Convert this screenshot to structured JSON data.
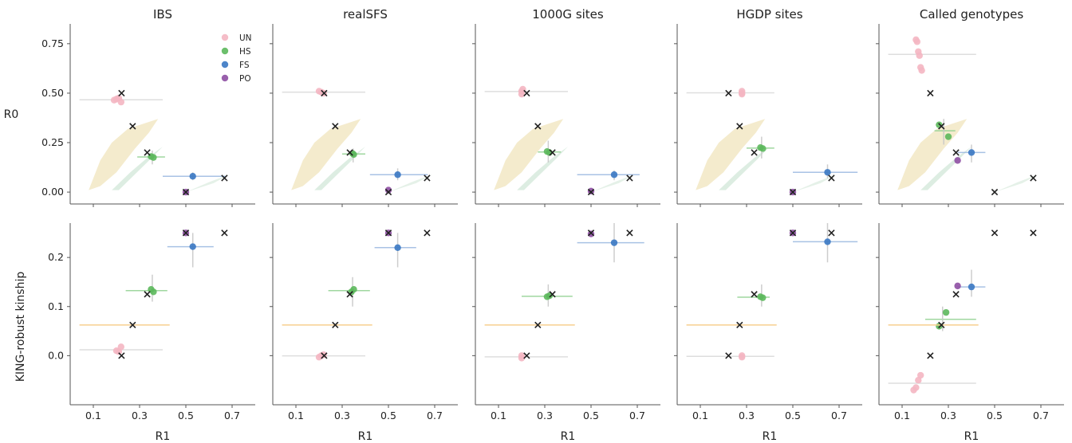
{
  "figure": {
    "panel_titles": [
      "IBS",
      "realSFS",
      "1000G sites",
      "HGDP sites",
      "Called genotypes"
    ],
    "row_labels": [
      "R0",
      "KING-robust kinship"
    ],
    "x_label": "R1"
  },
  "colors": {
    "UN": "#f4b6c2",
    "HS": "#5cb85c",
    "FS": "#3a78c3",
    "PO": "#8e4fa3",
    "expected_marker": "#222222",
    "band_yellow": "#f0e3b8",
    "band_green": "#cfe6d6",
    "err_grey": "#d9d9d9",
    "err_orange": "#f7cf8f",
    "err_green": "#8fd18f",
    "err_blue": "#9ab8e0"
  },
  "chart_data": {
    "type": "scatter",
    "x_axis": {
      "label": "R1",
      "ticks": [
        0.1,
        0.3,
        0.5,
        0.7
      ],
      "range": [
        0.0,
        0.8
      ]
    },
    "rows": [
      {
        "y_label": "R0",
        "ticks": [
          0.0,
          0.25,
          0.5,
          0.75
        ],
        "tick_labels": [
          "0.00",
          "0.25",
          "0.50",
          "0.75"
        ],
        "range": [
          -0.06,
          0.85
        ]
      },
      {
        "y_label": "KING-robust kinship",
        "ticks": [
          0.0,
          0.1,
          0.2
        ],
        "tick_labels": [
          "0.0",
          "0.1",
          "0.2"
        ],
        "range": [
          -0.1,
          0.27
        ]
      }
    ],
    "legend": {
      "entries": [
        "UN",
        "HS",
        "FS",
        "PO"
      ],
      "placement": "top-right of first panel"
    },
    "expected": {
      "R0": [
        {
          "x": 0.222,
          "y": 0.5
        },
        {
          "x": 0.27,
          "y": 0.333
        },
        {
          "x": 0.333,
          "y": 0.2
        },
        {
          "x": 0.667,
          "y": 0.071
        },
        {
          "x": 0.5,
          "y": 0.0
        }
      ],
      "KING": [
        {
          "x": 0.222,
          "y": 0.0
        },
        {
          "x": 0.27,
          "y": 0.0625
        },
        {
          "x": 0.333,
          "y": 0.125
        },
        {
          "x": 0.667,
          "y": 0.25
        },
        {
          "x": 0.5,
          "y": 0.25
        }
      ]
    },
    "panels": [
      {
        "name": "IBS",
        "R0": [
          {
            "group": "UN",
            "points": [
              [
                0.2,
                0.47
              ],
              [
                0.21,
                0.475
              ],
              [
                0.22,
                0.455
              ],
              [
                0.19,
                0.465
              ]
            ],
            "xerr": [
              0.04,
              0.4
            ],
            "yerr": null
          },
          {
            "group": "HS",
            "points": [
              [
                0.35,
                0.18
              ],
              [
                0.36,
                0.175
              ]
            ],
            "xerr": [
              0.29,
              0.41
            ],
            "yerr": [
              0.14,
              0.21
            ]
          },
          {
            "group": "FS",
            "points": [
              [
                0.53,
                0.08
              ]
            ],
            "xerr": [
              0.4,
              0.67
            ],
            "yerr": [
              0.06,
              0.1
            ]
          },
          {
            "group": "PO",
            "points": [
              [
                0.5,
                0.0
              ]
            ],
            "xerr": null,
            "yerr": null
          }
        ],
        "KING": [
          {
            "group": "UN",
            "points": [
              [
                0.2,
                0.01
              ],
              [
                0.21,
                0.008
              ],
              [
                0.22,
                0.018
              ]
            ],
            "xerr": [
              0.04,
              0.4
            ],
            "yerr": null
          },
          {
            "group": "HS",
            "points": [
              [
                0.35,
                0.135
              ],
              [
                0.36,
                0.13
              ]
            ],
            "xerr": [
              0.24,
              0.42
            ],
            "yerr": [
              0.11,
              0.165
            ]
          },
          {
            "group": "FS",
            "points": [
              [
                0.53,
                0.222
              ]
            ],
            "xerr": [
              0.42,
              0.62
            ],
            "yerr": [
              0.18,
              0.25
            ]
          },
          {
            "group": "PO",
            "points": [
              [
                0.5,
                0.25
              ]
            ],
            "xerr": null,
            "yerr": null
          }
        ]
      },
      {
        "name": "realSFS",
        "R0": [
          {
            "group": "UN",
            "points": [
              [
                0.21,
                0.505
              ],
              [
                0.22,
                0.5
              ],
              [
                0.2,
                0.51
              ]
            ],
            "xerr": [
              0.04,
              0.4
            ],
            "yerr": null
          },
          {
            "group": "HS",
            "points": [
              [
                0.35,
                0.19
              ],
              [
                0.345,
                0.195
              ]
            ],
            "xerr": [
              0.3,
              0.4
            ],
            "yerr": [
              0.15,
              0.22
            ]
          },
          {
            "group": "FS",
            "points": [
              [
                0.54,
                0.088
              ]
            ],
            "xerr": [
              0.42,
              0.67
            ],
            "yerr": [
              0.06,
              0.12
            ]
          },
          {
            "group": "PO",
            "points": [
              [
                0.5,
                0.01
              ]
            ],
            "xerr": null,
            "yerr": null
          }
        ],
        "KING": [
          {
            "group": "UN",
            "points": [
              [
                0.21,
                0.0
              ],
              [
                0.2,
                -0.003
              ],
              [
                0.22,
                0.002
              ]
            ],
            "xerr": [
              0.04,
              0.4
            ],
            "yerr": null
          },
          {
            "group": "HS",
            "points": [
              [
                0.34,
                0.13
              ],
              [
                0.35,
                0.135
              ]
            ],
            "xerr": [
              0.24,
              0.42
            ],
            "yerr": [
              0.1,
              0.16
            ]
          },
          {
            "group": "FS",
            "points": [
              [
                0.54,
                0.22
              ]
            ],
            "xerr": [
              0.44,
              0.62
            ],
            "yerr": [
              0.18,
              0.25
            ]
          },
          {
            "group": "PO",
            "points": [
              [
                0.5,
                0.25
              ]
            ],
            "xerr": null,
            "yerr": null
          }
        ]
      },
      {
        "name": "1000G sites",
        "R0": [
          {
            "group": "UN",
            "points": [
              [
                0.2,
                0.51
              ],
              [
                0.2,
                0.495
              ],
              [
                0.205,
                0.52
              ]
            ],
            "xerr": [
              0.04,
              0.4
            ],
            "yerr": null
          },
          {
            "group": "HS",
            "points": [
              [
                0.32,
                0.2
              ],
              [
                0.31,
                0.205
              ]
            ],
            "xerr": [
              0.27,
              0.37
            ],
            "yerr": [
              0.15,
              0.26
            ]
          },
          {
            "group": "FS",
            "points": [
              [
                0.6,
                0.088
              ]
            ],
            "xerr": [
              0.44,
              0.71
            ],
            "yerr": [
              0.06,
              0.11
            ]
          },
          {
            "group": "PO",
            "points": [
              [
                0.5,
                0.005
              ]
            ],
            "xerr": null,
            "yerr": null
          }
        ],
        "KING": [
          {
            "group": "UN",
            "points": [
              [
                0.2,
                0.0
              ],
              [
                0.2,
                -0.005
              ]
            ],
            "xerr": [
              0.04,
              0.4
            ],
            "yerr": null
          },
          {
            "group": "HS",
            "points": [
              [
                0.31,
                0.12
              ],
              [
                0.32,
                0.122
              ]
            ],
            "xerr": [
              0.2,
              0.42
            ],
            "yerr": [
              0.1,
              0.145
            ]
          },
          {
            "group": "FS",
            "points": [
              [
                0.6,
                0.23
              ]
            ],
            "xerr": [
              0.44,
              0.73
            ],
            "yerr": [
              0.19,
              0.27
            ]
          },
          {
            "group": "PO",
            "points": [
              [
                0.5,
                0.248
              ]
            ],
            "xerr": null,
            "yerr": null
          }
        ]
      },
      {
        "name": "HGDP sites",
        "R0": [
          {
            "group": "UN",
            "points": [
              [
                0.28,
                0.5
              ],
              [
                0.28,
                0.51
              ],
              [
                0.28,
                0.495
              ]
            ],
            "xerr": [
              0.04,
              0.42
            ],
            "yerr": null
          },
          {
            "group": "HS",
            "points": [
              [
                0.36,
                0.225
              ],
              [
                0.37,
                0.22
              ]
            ],
            "xerr": [
              0.3,
              0.42
            ],
            "yerr": [
              0.17,
              0.28
            ]
          },
          {
            "group": "FS",
            "points": [
              [
                0.65,
                0.1
              ]
            ],
            "xerr": [
              0.5,
              0.78
            ],
            "yerr": [
              0.07,
              0.14
            ]
          },
          {
            "group": "PO",
            "points": [
              [
                0.5,
                0.0
              ]
            ],
            "xerr": null,
            "yerr": null
          }
        ],
        "KING": [
          {
            "group": "UN",
            "points": [
              [
                0.28,
                0.0
              ],
              [
                0.28,
                -0.003
              ]
            ],
            "xerr": [
              0.04,
              0.42
            ],
            "yerr": null
          },
          {
            "group": "HS",
            "points": [
              [
                0.36,
                0.12
              ],
              [
                0.37,
                0.118
              ]
            ],
            "xerr": [
              0.26,
              0.4
            ],
            "yerr": [
              0.1,
              0.145
            ]
          },
          {
            "group": "FS",
            "points": [
              [
                0.65,
                0.232
              ]
            ],
            "xerr": [
              0.5,
              0.78
            ],
            "yerr": [
              0.19,
              0.27
            ]
          },
          {
            "group": "PO",
            "points": [
              [
                0.5,
                0.25
              ]
            ],
            "xerr": null,
            "yerr": null
          }
        ]
      },
      {
        "name": "Called genotypes",
        "R0": [
          {
            "group": "UN",
            "points": [
              [
                0.16,
                0.77
              ],
              [
                0.165,
                0.76
              ],
              [
                0.17,
                0.71
              ],
              [
                0.175,
                0.69
              ],
              [
                0.18,
                0.63
              ],
              [
                0.185,
                0.615
              ]
            ],
            "xerr": [
              0.04,
              0.42
            ],
            "yerr": null
          },
          {
            "group": "HS",
            "points": [
              [
                0.26,
                0.34
              ],
              [
                0.3,
                0.28
              ]
            ],
            "xerr": [
              0.24,
              0.33
            ],
            "yerr": [
              0.24,
              0.37
            ]
          },
          {
            "group": "FS",
            "points": [
              [
                0.4,
                0.2
              ]
            ],
            "xerr": [
              0.34,
              0.46
            ],
            "yerr": [
              0.15,
              0.24
            ]
          },
          {
            "group": "PO",
            "points": [
              [
                0.34,
                0.16
              ]
            ],
            "xerr": null,
            "yerr": null
          }
        ],
        "KING": [
          {
            "group": "UN",
            "points": [
              [
                0.15,
                -0.07
              ],
              [
                0.16,
                -0.065
              ],
              [
                0.17,
                -0.05
              ],
              [
                0.18,
                -0.04
              ]
            ],
            "xerr": [
              0.04,
              0.42
            ],
            "yerr": null
          },
          {
            "group": "HS",
            "points": [
              [
                0.26,
                0.06
              ],
              [
                0.29,
                0.088
              ]
            ],
            "xerr": [
              0.2,
              0.42
            ],
            "yerr": [
              0.05,
              0.1
            ]
          },
          {
            "group": "FS",
            "points": [
              [
                0.4,
                0.14
              ]
            ],
            "xerr": [
              0.34,
              0.46
            ],
            "yerr": [
              0.12,
              0.175
            ]
          },
          {
            "group": "PO",
            "points": [
              [
                0.34,
                0.142
              ]
            ],
            "xerr": null,
            "yerr": null
          }
        ]
      }
    ]
  }
}
